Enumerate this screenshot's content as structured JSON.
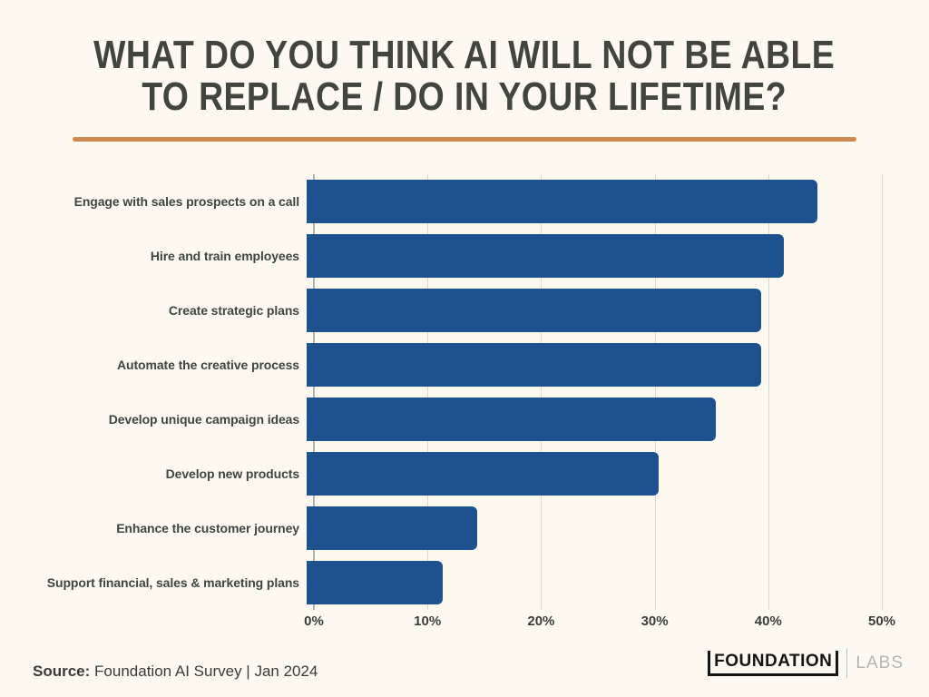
{
  "page": {
    "background_color": "#fdf9f1"
  },
  "header": {
    "title_line1": "WHAT DO YOU THINK AI WILL NOT BE ABLE",
    "title_line2": "TO REPLACE / DO IN YOUR LIFETIME?",
    "title_color": "#42453d",
    "divider_color": "#d08a4e"
  },
  "chart_data": {
    "type": "bar",
    "orientation": "horizontal",
    "title": "WHAT DO YOU THINK AI WILL NOT BE ABLE TO REPLACE / DO IN YOUR LIFETIME?",
    "categories": [
      "Engage with sales prospects on a call",
      "Hire and train employees",
      "Create strategic plans",
      "Automate the creative process",
      "Develop unique campaign ideas",
      "Develop new products",
      "Enhance the customer journey",
      "Support financial, sales & marketing plans"
    ],
    "values": [
      45,
      42,
      40,
      40,
      36,
      31,
      15,
      12
    ],
    "value_unit": "%",
    "xlim": [
      0,
      50
    ],
    "x_ticks": [
      "0%",
      "10%",
      "20%",
      "30%",
      "40%",
      "50%"
    ],
    "xlabel": "",
    "ylabel": "",
    "grid": "vertical",
    "legend": "none",
    "bar_color": "#1d5190",
    "gridline_color": "#dcdad4",
    "axis_line_color": "#b3b1ac"
  },
  "footer": {
    "source_label": "Source:",
    "source_text": "Foundation AI Survey | Jan 2024",
    "logo_primary": "FOUNDATION",
    "logo_secondary": "LABS"
  }
}
